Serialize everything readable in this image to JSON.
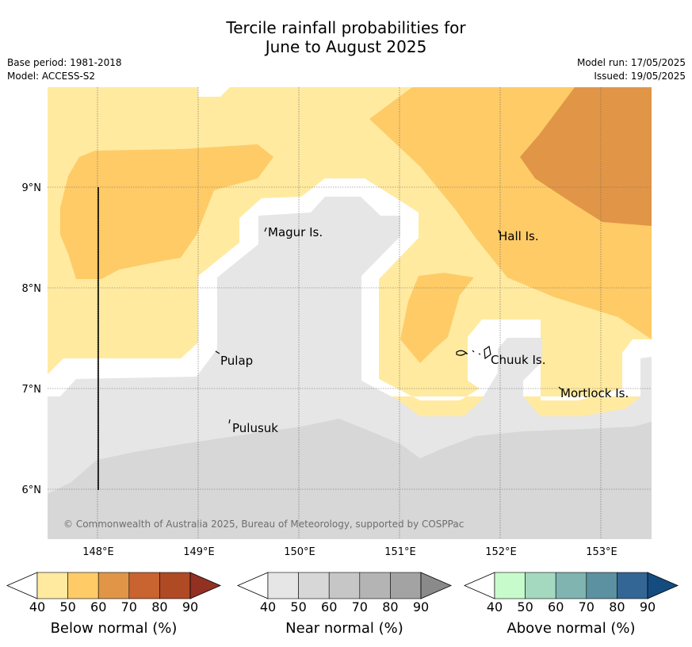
{
  "header": {
    "title_line1": "Tercile rainfall probabilities for",
    "title_line2": "June to August 2025",
    "base_period": "Base period: 1981-2018",
    "model": "Model: ACCESS-S2",
    "model_run": "Model run: 17/05/2025",
    "issued": "Issued: 19/05/2025"
  },
  "map": {
    "lat_labels": [
      "9°N",
      "8°N",
      "7°N",
      "6°N"
    ],
    "lon_labels": [
      "148°E",
      "149°E",
      "150°E",
      "151°E",
      "152°E",
      "153°E"
    ],
    "places": [
      "Magur Is.",
      "Hall Is.",
      "Pulap",
      "Chuuk Is.",
      "Mortlock Is.",
      "Pulusuk"
    ],
    "copyright": "© Commonwealth of Australia 2025, Bureau of Meteorology, supported by COSPPac",
    "region_colors": {
      "below_40_50": "#ffeaa0",
      "below_50_60": "#fecb67",
      "below_60_70": "#e19647",
      "near_40_50": "#e6e6e6",
      "near_50_60": "#d7d7d7",
      "no_signal": "#ffffff"
    }
  },
  "legends": [
    {
      "title": "Below normal (%)",
      "ticks": [
        "40",
        "50",
        "60",
        "70",
        "80",
        "90"
      ],
      "colors": [
        "#ffeaa0",
        "#fecb67",
        "#e19647",
        "#c9632f",
        "#b04a25",
        "#923122"
      ]
    },
    {
      "title": "Near normal (%)",
      "ticks": [
        "40",
        "50",
        "60",
        "70",
        "80",
        "90"
      ],
      "colors": [
        "#e6e6e6",
        "#d7d7d7",
        "#c6c6c6",
        "#b4b4b4",
        "#a3a3a3",
        "#8a8a8a"
      ]
    },
    {
      "title": "Above normal (%)",
      "ticks": [
        "40",
        "50",
        "60",
        "70",
        "80",
        "90"
      ],
      "colors": [
        "#c8fbcc",
        "#a4d9bf",
        "#7fb4b0",
        "#5b91a1",
        "#336694",
        "#154c80"
      ]
    }
  ]
}
